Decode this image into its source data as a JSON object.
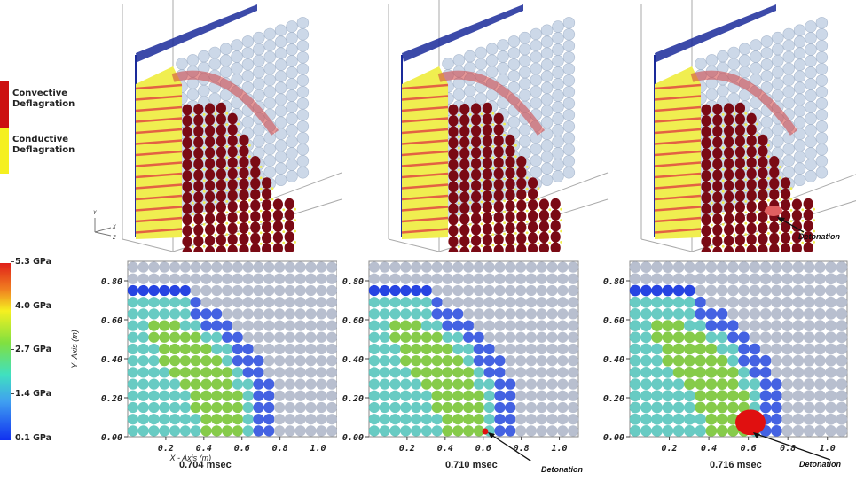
{
  "legend_3d": {
    "items": [
      {
        "label": "Convective\nDeflagration",
        "color": "#cc1010"
      },
      {
        "label": "Conductive\nDeflagration",
        "color": "#f5f020"
      }
    ]
  },
  "colorbar": {
    "ticks": [
      "5.3 GPa",
      "4.0 GPa",
      "2.7 GPa",
      "1.4 GPa",
      "0.1 GPa"
    ],
    "range": [
      0.1,
      5.3
    ],
    "unit": "GPa"
  },
  "axes_3d": {
    "labels": [
      "Y",
      "X",
      "Z"
    ]
  },
  "plots_2d": {
    "y_axis_title": "Y- Axis (m)",
    "x_axis_title": "X - Axis (m)",
    "y_ticks": [
      "0.80",
      "0.60",
      "0.40",
      "0.20",
      "0.00"
    ],
    "x_ticks": [
      "0.2",
      "0.4",
      "0.6",
      "0.8",
      "1.0"
    ]
  },
  "panels": [
    {
      "time": "0.704 msec",
      "detonation_label": null,
      "detonation_size": 0
    },
    {
      "time": "0.710 msec",
      "detonation_label": "Detonation",
      "detonation_size": 1
    },
    {
      "time": "0.716 msec",
      "detonation_label": "Detonation",
      "detonation_size": 3
    }
  ],
  "annotations": {
    "detonation_3d": "Detonation"
  },
  "colors": {
    "unreacted": "#b4bccc",
    "low_pressure": "#1a3ae0",
    "mid_pressure": "#60c8c0",
    "high_pressure": "#80c840",
    "detonation": "#e01010",
    "convective": "#7a0a14",
    "conductive": "#f0ee50",
    "frame_blue": "#1a2a9a"
  }
}
